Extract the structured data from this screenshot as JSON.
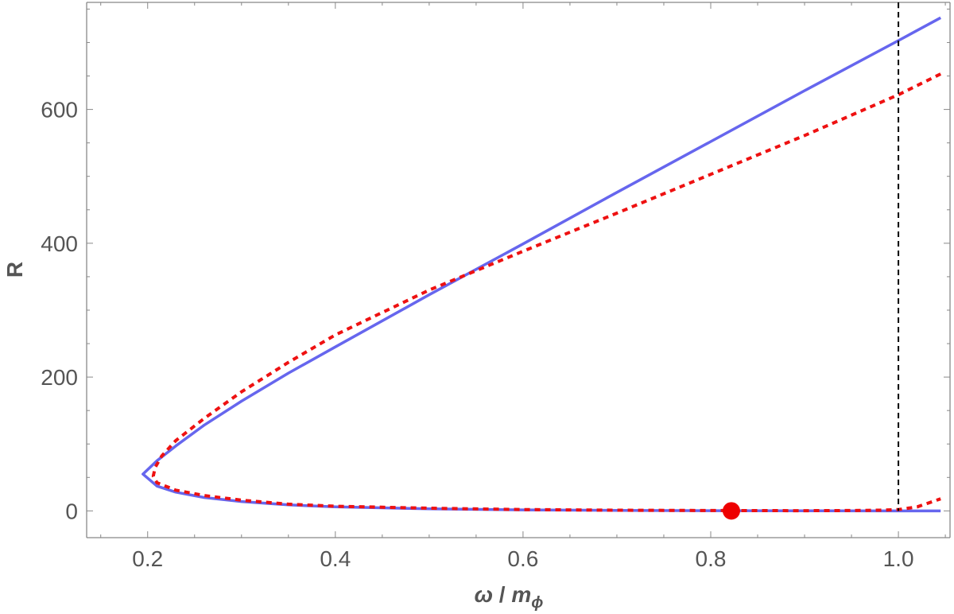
{
  "chart_data": {
    "type": "line",
    "title": "",
    "xlabel": "ω / m_ϕ",
    "xlabel_parts": {
      "omega": "ω",
      "slash": " / ",
      "m": "m",
      "sub": "ϕ"
    },
    "ylabel": "R",
    "xlim": [
      0.135,
      1.055
    ],
    "ylim": [
      -40,
      760
    ],
    "x_ticks": [
      0.2,
      0.4,
      0.6,
      0.8,
      1.0
    ],
    "x_tick_labels": [
      "0.2",
      "0.4",
      "0.6",
      "0.8",
      "1.0"
    ],
    "y_ticks": [
      0,
      200,
      400,
      600
    ],
    "y_tick_labels": [
      "0",
      "200",
      "400",
      "600"
    ],
    "grid": false,
    "series": [
      {
        "style": "solid",
        "color": "#6666ee",
        "points": [
          [
            1.045,
            737
          ],
          [
            1.0,
            703
          ],
          [
            0.9,
            628
          ],
          [
            0.8,
            552
          ],
          [
            0.7,
            476
          ],
          [
            0.6,
            399
          ],
          [
            0.5,
            323
          ],
          [
            0.4,
            245
          ],
          [
            0.35,
            206
          ],
          [
            0.3,
            164
          ],
          [
            0.26,
            128
          ],
          [
            0.23,
            97
          ],
          [
            0.21,
            75
          ],
          [
            0.195,
            55
          ],
          [
            0.21,
            37
          ],
          [
            0.23,
            28
          ],
          [
            0.26,
            20
          ],
          [
            0.3,
            14
          ],
          [
            0.35,
            9
          ],
          [
            0.4,
            6
          ],
          [
            0.5,
            3
          ],
          [
            0.6,
            1.5
          ],
          [
            0.7,
            0.8
          ],
          [
            0.8,
            0.3
          ],
          [
            0.9,
            0.1
          ],
          [
            1.0,
            0
          ],
          [
            1.045,
            0
          ]
        ]
      },
      {
        "style": "dotted",
        "color": "#ee1111",
        "points": [
          [
            1.045,
            653
          ],
          [
            1.0,
            622
          ],
          [
            0.9,
            561
          ],
          [
            0.8,
            503
          ],
          [
            0.7,
            445
          ],
          [
            0.6,
            388
          ],
          [
            0.5,
            330
          ],
          [
            0.4,
            263
          ],
          [
            0.35,
            222
          ],
          [
            0.3,
            178
          ],
          [
            0.26,
            138
          ],
          [
            0.23,
            105
          ],
          [
            0.215,
            82
          ],
          [
            0.208,
            65
          ],
          [
            0.206,
            52
          ],
          [
            0.21,
            42
          ],
          [
            0.23,
            31
          ],
          [
            0.26,
            23
          ],
          [
            0.3,
            16
          ],
          [
            0.35,
            10
          ],
          [
            0.4,
            7
          ],
          [
            0.5,
            4
          ],
          [
            0.6,
            2
          ],
          [
            0.7,
            1
          ],
          [
            0.8,
            0.5
          ],
          [
            0.9,
            0.3
          ],
          [
            0.95,
            0.5
          ],
          [
            0.98,
            1
          ],
          [
            1.0,
            2
          ],
          [
            1.02,
            6
          ],
          [
            1.045,
            18
          ]
        ]
      }
    ],
    "reference_line": {
      "x": 1.0,
      "style": "dashed",
      "color": "#000000"
    },
    "marker": {
      "x": 0.822,
      "y": 0,
      "color": "#ee0000"
    }
  }
}
